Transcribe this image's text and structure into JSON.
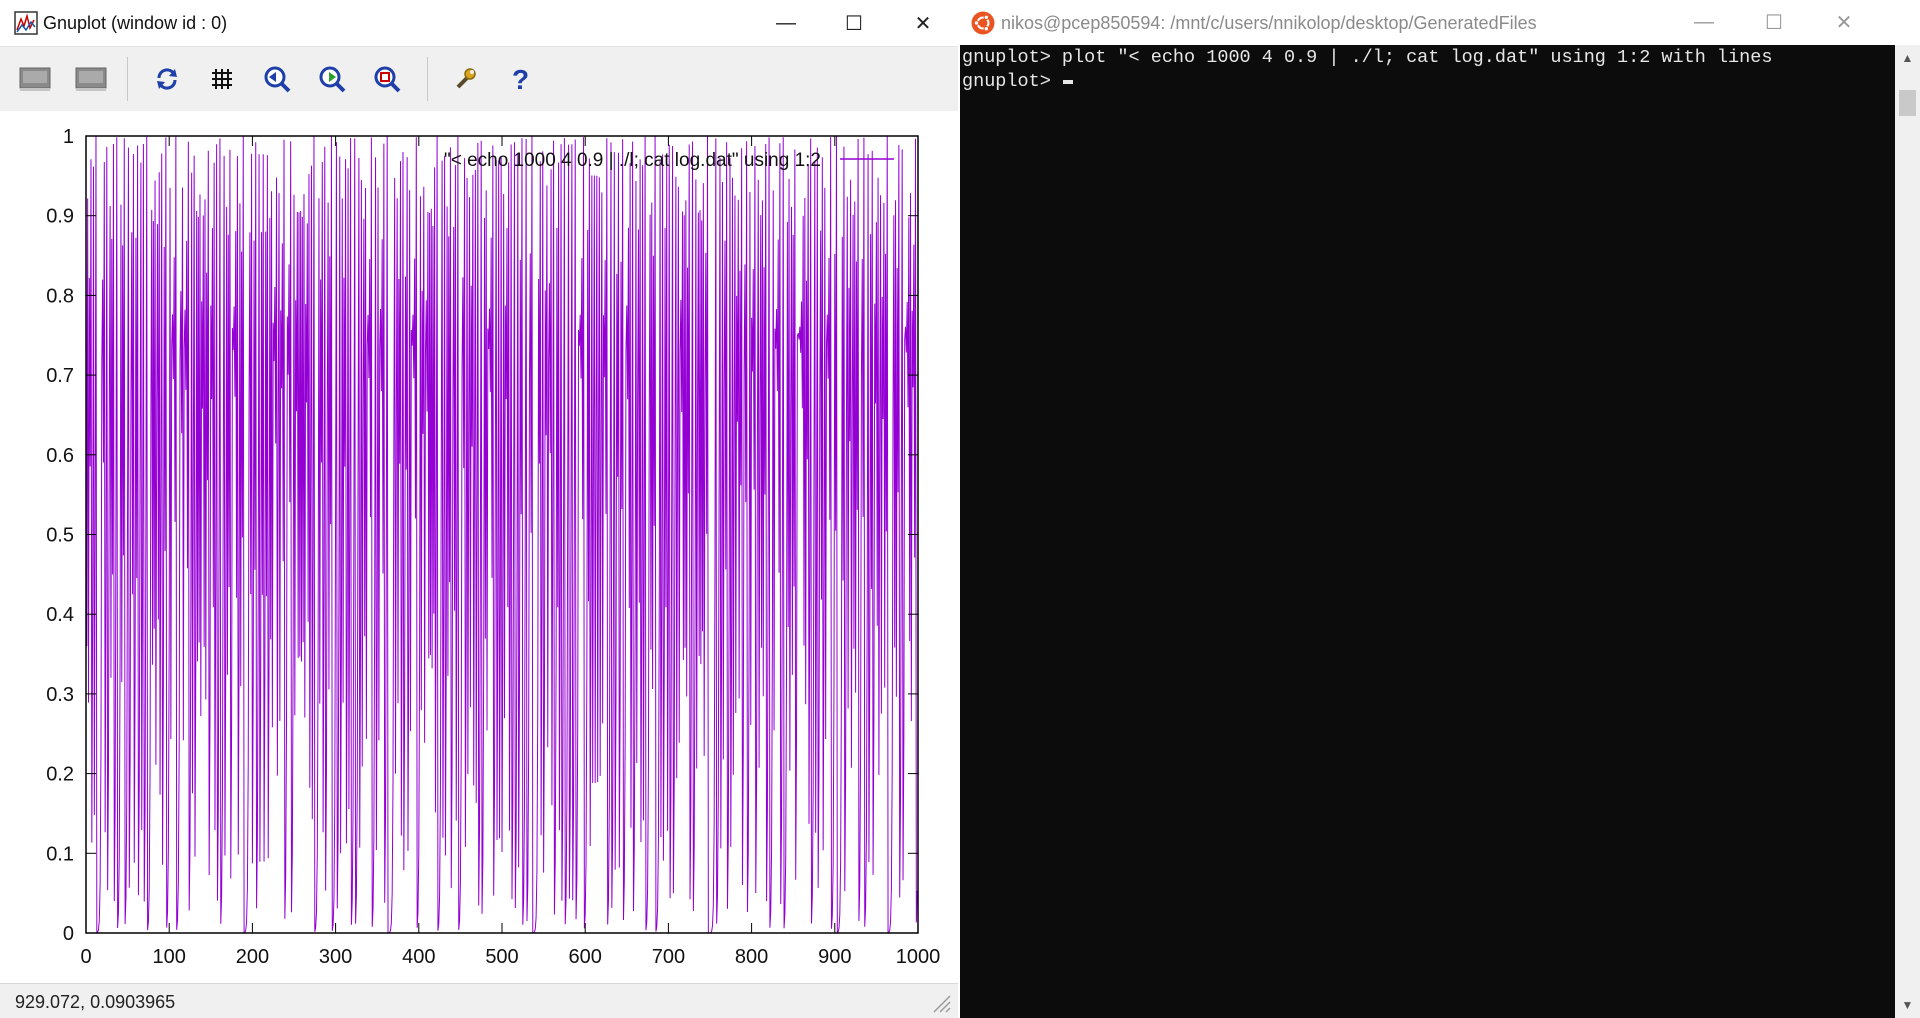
{
  "gnuplot_window": {
    "title": "Gnuplot (window id : 0)",
    "controls": {
      "minimize": "—",
      "maximize": "☐",
      "close": "✕"
    },
    "toolbar_icons": [
      "copy-clipboard-icon",
      "print-icon",
      "replot-icon",
      "grid-icon",
      "previous-zoom-icon",
      "next-zoom-icon",
      "autoscale-icon",
      "options-wrench-icon",
      "help-icon"
    ],
    "status": "929.072,  0.0903965",
    "colors": {
      "series": "#9400d3",
      "toolbar_blue": "#1f3fa8",
      "toolbar_green": "#2aa02a"
    }
  },
  "chart_data": {
    "type": "line",
    "series": [
      {
        "name": "\"< echo 1000 4 0.9 | ./l; cat log.dat\" using 1:2",
        "color": "#9400d3",
        "generator": {
          "count": 1000,
          "r": 4,
          "x0": 0.9
        }
      }
    ],
    "xlim": [
      0,
      1000
    ],
    "ylim": [
      0,
      1
    ],
    "x_ticks": [
      "0",
      "100",
      "200",
      "300",
      "400",
      "500",
      "600",
      "700",
      "800",
      "900",
      "1000"
    ],
    "y_ticks": [
      "0",
      "0.1",
      "0.2",
      "0.3",
      "0.4",
      "0.5",
      "0.6",
      "0.7",
      "0.8",
      "0.9",
      "1"
    ],
    "legend": "top-right",
    "grid": false
  },
  "terminal": {
    "title": "nikos@pcep850594: /mnt/c/users/nnikolop/desktop/GeneratedFiles",
    "controls": {
      "minimize": "—",
      "maximize": "☐",
      "close": "✕"
    },
    "lines": [
      "gnuplot> plot \"< echo 1000 4 0.9 | ./l; cat log.dat\" using 1:2 with lines",
      "gnuplot> "
    ],
    "colors": {
      "background": "#0c0c0c",
      "text": "#e6e6e6",
      "ubuntu": "#e95420"
    }
  }
}
